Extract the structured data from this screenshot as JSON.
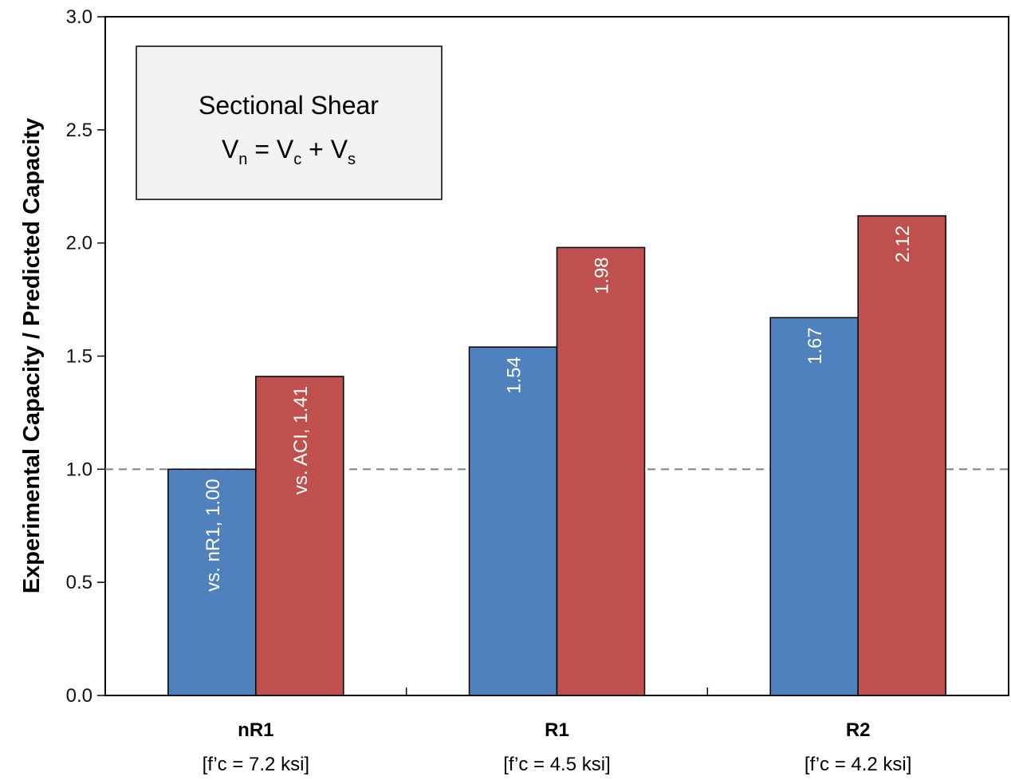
{
  "chart_data": {
    "type": "bar",
    "title": "",
    "xlabel": "",
    "ylabel": "Experimental Capacity / Predicted Capacity",
    "ylim": [
      0,
      3.0
    ],
    "yticks": [
      "0.0",
      "0.5",
      "1.0",
      "1.5",
      "2.0",
      "2.5",
      "3.0"
    ],
    "categories": [
      "nR1",
      "R1",
      "R2"
    ],
    "category_sublabels": [
      "[f’c = 7.2 ksi]",
      "[f’c = 4.5 ksi]",
      "[f’c = 4.2 ksi]"
    ],
    "series": [
      {
        "name": "vs. nR1",
        "color": "#4f81bd",
        "values": [
          1.0,
          1.54,
          1.67
        ],
        "labels": [
          "vs. nR1, 1.00",
          "1.54",
          "1.67"
        ]
      },
      {
        "name": "vs. ACI",
        "color": "#c0504d",
        "values": [
          1.41,
          1.98,
          2.12
        ],
        "labels": [
          "vs. ACI, 1.41",
          "1.98",
          "2.12"
        ]
      }
    ],
    "reference_line": {
      "y": 1.0,
      "style": "dashed",
      "color": "#808080"
    },
    "grid": false,
    "annotation_box": {
      "line1": "Sectional Shear",
      "eq": {
        "lhs": "V",
        "lhs_sub": "n",
        "eq_sign": " = ",
        "t1": "V",
        "t1_sub": "c",
        "plus": " + ",
        "t2": "V",
        "t2_sub": "s"
      }
    }
  }
}
